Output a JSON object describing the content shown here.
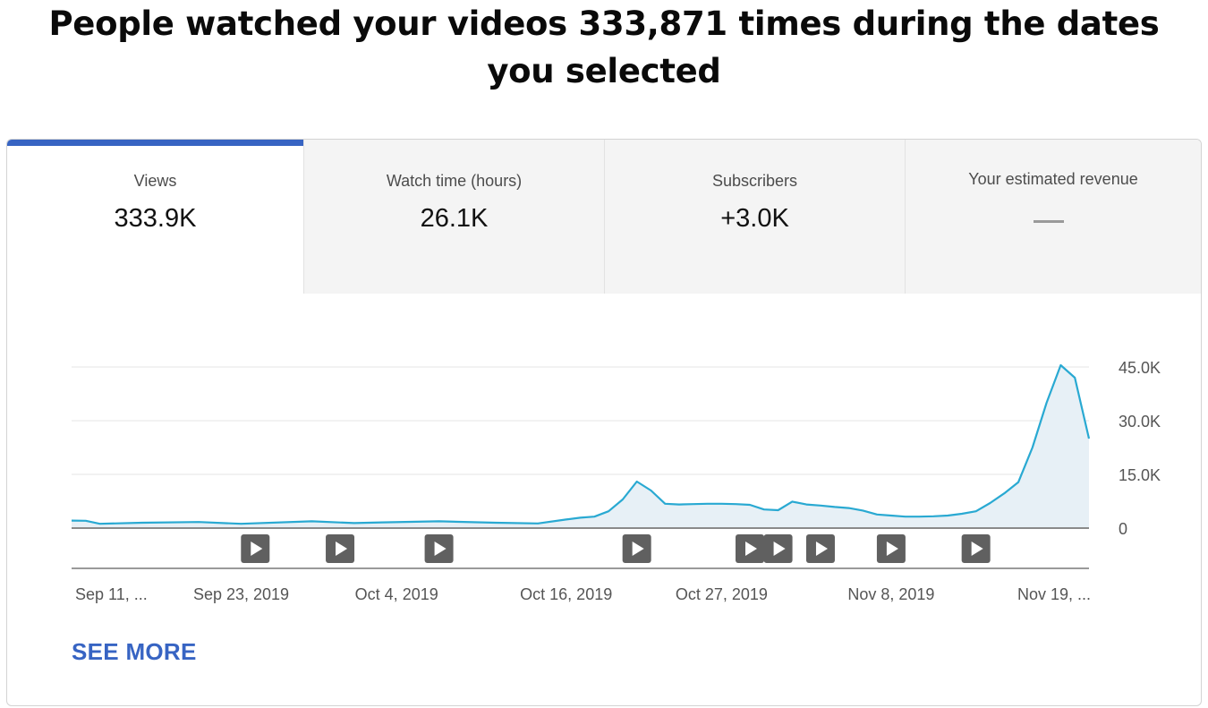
{
  "headline": {
    "line1": "People watched your videos 333,871 times during the dates",
    "line2": "you selected"
  },
  "tabs": [
    {
      "label": "Views",
      "value": "333.9K",
      "active": true
    },
    {
      "label": "Watch time (hours)",
      "value": "26.1K"
    },
    {
      "label": "Subscribers",
      "value": "+3.0K"
    },
    {
      "label": "Your estimated revenue",
      "value": "—"
    }
  ],
  "colors": {
    "accent": "#3764c3",
    "line": "#29a9d2",
    "area": "#e7f0f6",
    "marker": "#606060"
  },
  "chart_data": {
    "type": "area",
    "ylim": [
      0,
      45000
    ],
    "y_ticks": [
      "45.0K",
      "30.0K",
      "15.0K",
      "0"
    ],
    "y_tick_values": [
      45000,
      30000,
      15000,
      0
    ],
    "x_tick_labels": [
      "Sep 11, ...",
      "Sep 23, 2019",
      "Oct 4, 2019",
      "Oct 16, 2019",
      "Oct 27, 2019",
      "Nov 8, 2019",
      "Nov 19, ..."
    ],
    "x_tick_days": [
      0,
      12,
      23,
      35,
      46,
      58,
      69
    ],
    "series": [
      {
        "days": [
          0,
          1,
          2,
          5,
          9,
          12,
          17,
          20,
          22,
          26,
          30,
          33,
          35,
          36,
          37,
          38,
          39,
          40,
          41,
          42,
          43,
          44,
          45,
          46,
          47,
          48,
          49,
          50,
          51,
          52,
          53,
          54,
          55,
          56,
          57,
          58,
          59,
          60,
          61,
          62,
          63,
          64,
          65,
          66,
          67,
          68,
          69,
          70,
          71,
          72
        ],
        "values": [
          2100,
          2050,
          1200,
          1500,
          1700,
          1200,
          1900,
          1400,
          1600,
          1900,
          1500,
          1300,
          2400,
          2900,
          3200,
          4700,
          8000,
          13000,
          10500,
          6800,
          6600,
          6700,
          6800,
          6800,
          6700,
          6500,
          5200,
          5000,
          7400,
          6600,
          6300,
          5900,
          5600,
          4900,
          3800,
          3500,
          3200,
          3200,
          3300,
          3500,
          4000,
          4700,
          7000,
          9700,
          12800,
          22500,
          35000,
          45500,
          42000,
          25000
        ]
      }
    ],
    "video_marker_days": [
      13,
      19,
      26,
      40,
      48,
      50,
      53,
      58,
      64
    ]
  },
  "see_more": "SEE MORE"
}
